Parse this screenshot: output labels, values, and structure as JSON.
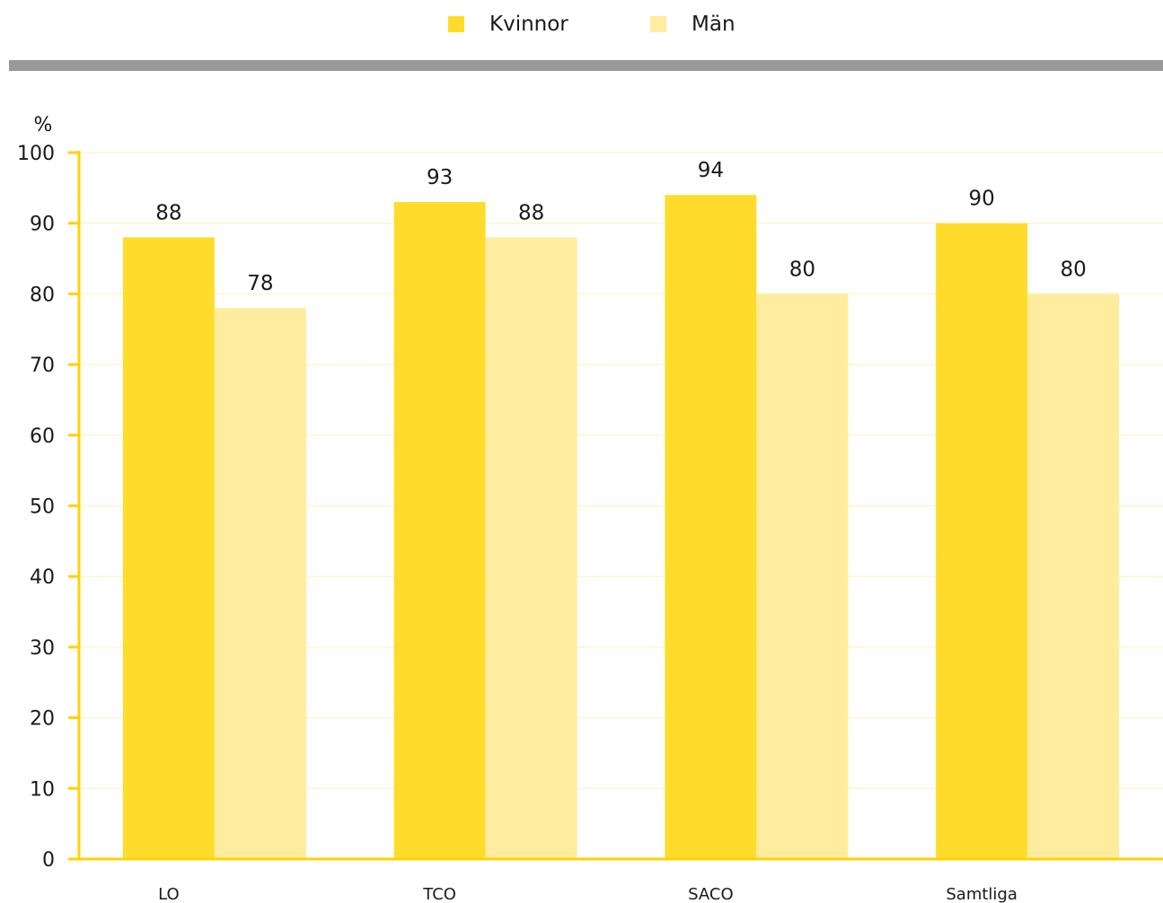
{
  "chart_data": {
    "type": "bar",
    "categories": [
      "LO",
      "TCO",
      "SACO",
      "Samtliga"
    ],
    "series": [
      {
        "name": "Kvinnor",
        "values": [
          88,
          93,
          94,
          90
        ],
        "color": "#FFDC2B"
      },
      {
        "name": "Män",
        "values": [
          78,
          88,
          80,
          80
        ],
        "color": "#FFEC9E"
      }
    ],
    "ylabel": "%",
    "ylim": [
      0,
      100
    ],
    "yticks": [
      0,
      10,
      20,
      30,
      40,
      50,
      60,
      70,
      80,
      90,
      100
    ],
    "grid": true,
    "data_labels": true,
    "legend_position": "top-center"
  },
  "colors": {
    "axis": "#FFD200",
    "grid": "#FFF6CC",
    "divider": "#999999"
  }
}
